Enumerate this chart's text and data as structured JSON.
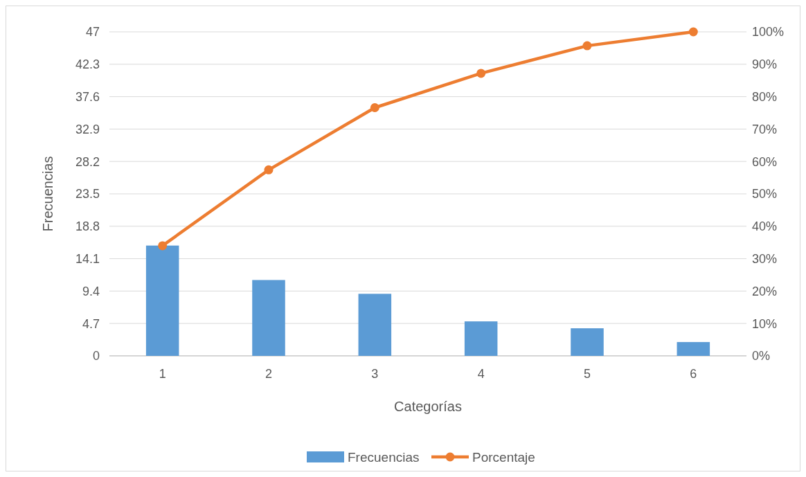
{
  "chart_data": {
    "type": "bar",
    "xlabel": "Categorías",
    "ylabel": "Frecuencias",
    "categories": [
      "1",
      "2",
      "3",
      "4",
      "5",
      "6"
    ],
    "series": [
      {
        "name": "Frecuencias",
        "color": "#5b9bd5",
        "values": [
          16,
          11,
          9,
          5,
          4,
          2
        ]
      },
      {
        "name": "Porcentaje",
        "type": "line",
        "axis": "y2",
        "color": "#ed7d31",
        "marker": "circle",
        "values": [
          34.0,
          57.4,
          76.6,
          87.2,
          95.7,
          100
        ]
      }
    ],
    "ylim": [
      0,
      47
    ],
    "yticks": [
      0,
      4.7,
      9.4,
      14.1,
      18.8,
      23.5,
      28.2,
      32.9,
      37.6,
      42.3,
      47
    ],
    "y2lim": [
      0,
      100
    ],
    "y2ticks": [
      {
        "value": 0,
        "label": "0%"
      },
      {
        "value": 10,
        "label": "10%"
      },
      {
        "value": 20,
        "label": "20%"
      },
      {
        "value": 30,
        "label": "30%"
      },
      {
        "value": 40,
        "label": "40%"
      },
      {
        "value": 50,
        "label": "50%"
      },
      {
        "value": 60,
        "label": "60%"
      },
      {
        "value": 70,
        "label": "70%"
      },
      {
        "value": 80,
        "label": "80%"
      },
      {
        "value": 90,
        "label": "90%"
      },
      {
        "value": 100,
        "label": "100%"
      }
    ],
    "grid": "y",
    "legend": "bottom"
  }
}
